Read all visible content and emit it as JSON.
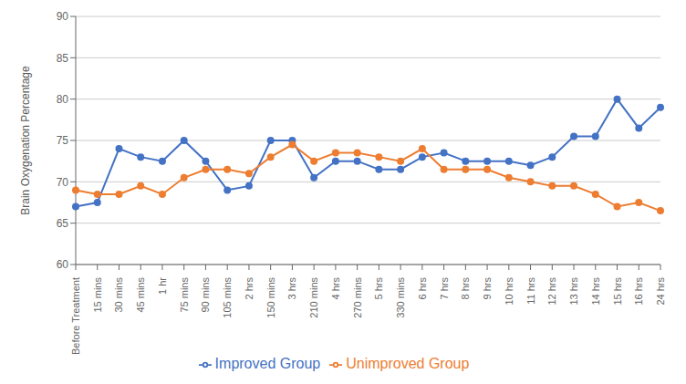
{
  "chart_data": {
    "type": "line",
    "categories": [
      "Before Treatment",
      "15 mins",
      "30 mins",
      "45 mins",
      "1 hr",
      "75 mins",
      "90 mins",
      "105 mins",
      "2 hrs",
      "150 mins",
      "3 hrs",
      "210 mins",
      "4 hrs",
      "270 mins",
      "5 hrs",
      "330 mins",
      "6 hrs",
      "7 hrs",
      "8 hrs",
      "9 hrs",
      "10 hrs",
      "11 hrs",
      "12 hrs",
      "13 hrs",
      "14 hrs",
      "15 hrs",
      "16 hrs",
      "24 hrs"
    ],
    "series": [
      {
        "name": "Improved Group",
        "color": "#4472C4",
        "marker": "circle",
        "values": [
          67,
          67.5,
          74,
          73,
          72.5,
          75,
          72.5,
          69,
          69.5,
          75,
          75,
          70.5,
          72.5,
          72.5,
          71.5,
          71.5,
          73,
          73.5,
          72.5,
          72.5,
          72.5,
          72,
          73,
          75.5,
          75.5,
          80,
          76.5,
          79
        ]
      },
      {
        "name": "Unimproved Group",
        "color": "#ED7D31",
        "marker": "circle",
        "values": [
          69,
          68.5,
          68.5,
          69.5,
          68.5,
          70.5,
          71.5,
          71.5,
          71,
          73,
          74.5,
          72.5,
          73.5,
          73.5,
          73,
          72.5,
          74,
          71.5,
          71.5,
          71.5,
          70.5,
          70,
          69.5,
          69.5,
          68.5,
          67,
          67.5,
          66.5
        ]
      }
    ],
    "y_label": "Brain Oxygenation Percentage",
    "ylim": [
      60,
      90
    ],
    "yticks": [
      60,
      65,
      70,
      75,
      80,
      85,
      90
    ],
    "grid": true,
    "legend": "bottom"
  }
}
